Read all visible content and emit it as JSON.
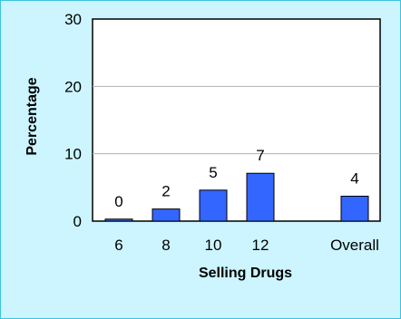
{
  "chart_data": {
    "type": "bar",
    "categories": [
      "6",
      "8",
      "10",
      "12",
      "Overall"
    ],
    "values": [
      0.3,
      1.8,
      4.6,
      7.1,
      3.7
    ],
    "data_labels": [
      "0",
      "2",
      "5",
      "7",
      "4"
    ],
    "xlabel": "Selling Drugs",
    "ylabel": "Percentage",
    "ylim": [
      0,
      30
    ],
    "yticks": [
      0,
      10,
      20,
      30
    ],
    "grid": true,
    "colors": {
      "bar": "#3366ff",
      "plot_background": "#ffffff",
      "frame_background": "#ccf5ff",
      "frame_border": "#3ec3e0",
      "gridline": "#b0b0b0"
    }
  }
}
